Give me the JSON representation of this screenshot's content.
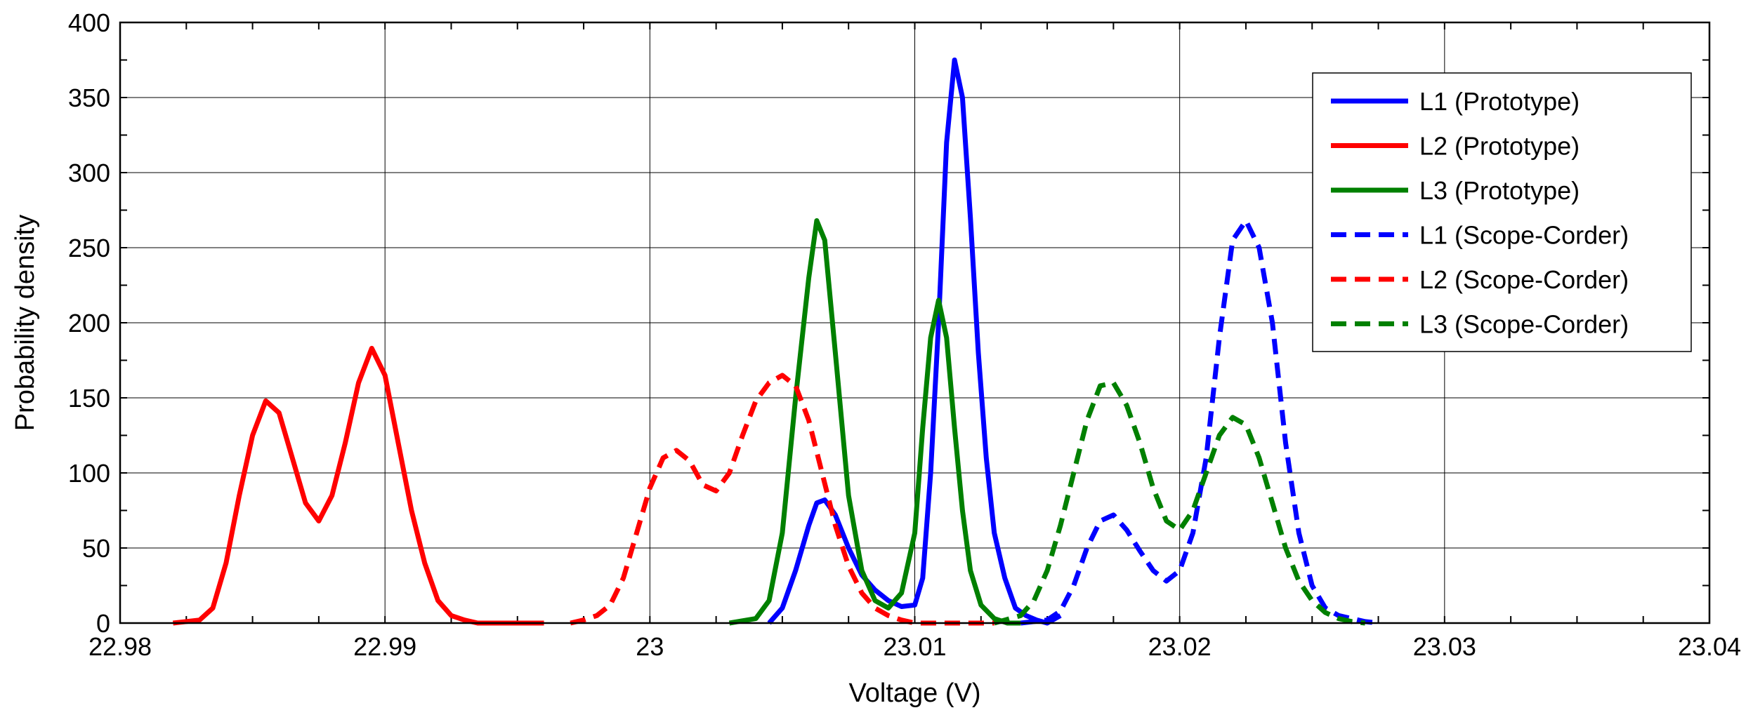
{
  "chart_data": {
    "type": "line",
    "title": "",
    "xlabel": "Voltage (V)",
    "ylabel": "Probability density",
    "xlim": [
      22.98,
      23.04
    ],
    "ylim": [
      0,
      400
    ],
    "xticks": [
      22.98,
      22.99,
      23.0,
      23.01,
      23.02,
      23.03,
      23.04
    ],
    "xtick_labels": [
      "22.98",
      "22.99",
      "23",
      "23.01",
      "23.02",
      "23.03",
      "23.04"
    ],
    "yticks": [
      0,
      50,
      100,
      150,
      200,
      250,
      300,
      350,
      400
    ],
    "ytick_labels": [
      "0",
      "50",
      "100",
      "150",
      "200",
      "250",
      "300",
      "350",
      "400"
    ],
    "grid": true,
    "legend_position": "top-right",
    "series": [
      {
        "name": "L1 (Prototype)",
        "color": "#0000ff",
        "dash": "solid",
        "x": [
          23.0045,
          23.005,
          23.0055,
          23.006,
          23.0063,
          23.0066,
          23.007,
          23.0075,
          23.008,
          23.0085,
          23.009,
          23.0095,
          23.01,
          23.0103,
          23.0106,
          23.0109,
          23.0112,
          23.0115,
          23.0118,
          23.0121,
          23.0124,
          23.0127,
          23.013,
          23.0134,
          23.0138,
          23.0142,
          23.0146,
          23.015,
          23.0155
        ],
        "y": [
          0,
          10,
          35,
          65,
          80,
          82,
          72,
          50,
          32,
          22,
          15,
          11,
          12,
          30,
          100,
          200,
          320,
          375,
          350,
          270,
          180,
          110,
          60,
          30,
          10,
          5,
          2,
          0,
          5
        ]
      },
      {
        "name": "L2 (Prototype)",
        "color": "#ff0000",
        "dash": "solid",
        "x": [
          22.982,
          22.983,
          22.9835,
          22.984,
          22.9845,
          22.985,
          22.9855,
          22.986,
          22.9865,
          22.987,
          22.9875,
          22.988,
          22.9885,
          22.989,
          22.9895,
          22.99,
          22.9905,
          22.991,
          22.9915,
          22.992,
          22.9925,
          22.993,
          22.9935,
          22.994,
          22.995,
          22.996
        ],
        "y": [
          0,
          2,
          10,
          40,
          85,
          125,
          148,
          140,
          110,
          80,
          68,
          85,
          120,
          160,
          183,
          165,
          120,
          75,
          40,
          15,
          5,
          2,
          0,
          0,
          0,
          0
        ]
      },
      {
        "name": "L3 (Prototype)",
        "color": "#008000",
        "dash": "solid",
        "x": [
          23.003,
          23.004,
          23.0045,
          23.005,
          23.0055,
          23.006,
          23.0063,
          23.0066,
          23.007,
          23.0075,
          23.008,
          23.0085,
          23.009,
          23.0095,
          23.01,
          23.0103,
          23.0106,
          23.0109,
          23.0112,
          23.0115,
          23.0118,
          23.0121,
          23.0125,
          23.013,
          23.0135,
          23.014
        ],
        "y": [
          0,
          3,
          15,
          60,
          150,
          230,
          268,
          255,
          180,
          85,
          35,
          15,
          10,
          20,
          60,
          130,
          190,
          215,
          190,
          130,
          75,
          35,
          12,
          3,
          0,
          0
        ]
      },
      {
        "name": "L1 (Scope-Corder)",
        "color": "#0000ff",
        "dash": "dashed",
        "x": [
          23.014,
          23.015,
          23.0155,
          23.016,
          23.0165,
          23.017,
          23.0175,
          23.018,
          23.0185,
          23.019,
          23.0195,
          23.02,
          23.0205,
          23.021,
          23.0215,
          23.022,
          23.0225,
          23.023,
          23.0235,
          23.024,
          23.0245,
          23.025,
          23.0255,
          23.026,
          23.0265,
          23.027,
          23.0275
        ],
        "y": [
          0,
          2,
          8,
          25,
          50,
          68,
          72,
          62,
          48,
          35,
          28,
          35,
          60,
          110,
          190,
          255,
          268,
          250,
          200,
          120,
          60,
          25,
          10,
          5,
          3,
          1,
          0
        ]
      },
      {
        "name": "L2 (Scope-Corder)",
        "color": "#ff0000",
        "dash": "dashed",
        "x": [
          22.997,
          22.9975,
          22.998,
          22.9985,
          22.999,
          22.9995,
          23.0,
          23.0005,
          23.001,
          23.0015,
          23.002,
          23.0025,
          23.003,
          23.0035,
          23.004,
          23.0045,
          23.005,
          23.0055,
          23.006,
          23.0065,
          23.007,
          23.0075,
          23.008,
          23.0085,
          23.009,
          23.0095,
          23.01,
          23.011,
          23.012,
          23.013
        ],
        "y": [
          0,
          2,
          5,
          12,
          30,
          60,
          90,
          110,
          115,
          108,
          92,
          88,
          100,
          125,
          148,
          160,
          165,
          158,
          135,
          100,
          65,
          38,
          20,
          10,
          5,
          2,
          0,
          0,
          0,
          0
        ]
      },
      {
        "name": "L3 (Scope-Corder)",
        "color": "#008000",
        "dash": "dashed",
        "x": [
          23.013,
          23.014,
          23.0145,
          23.015,
          23.0155,
          23.016,
          23.0165,
          23.017,
          23.0175,
          23.018,
          23.0185,
          23.019,
          23.0195,
          23.02,
          23.0205,
          23.021,
          23.0215,
          23.022,
          23.0225,
          23.023,
          23.0235,
          23.024,
          23.0245,
          23.025,
          23.0255,
          23.026,
          23.0265,
          23.027
        ],
        "y": [
          0,
          5,
          15,
          35,
          65,
          100,
          135,
          158,
          160,
          145,
          120,
          90,
          68,
          62,
          75,
          100,
          125,
          137,
          132,
          110,
          80,
          50,
          28,
          15,
          7,
          3,
          1,
          0
        ]
      }
    ]
  }
}
